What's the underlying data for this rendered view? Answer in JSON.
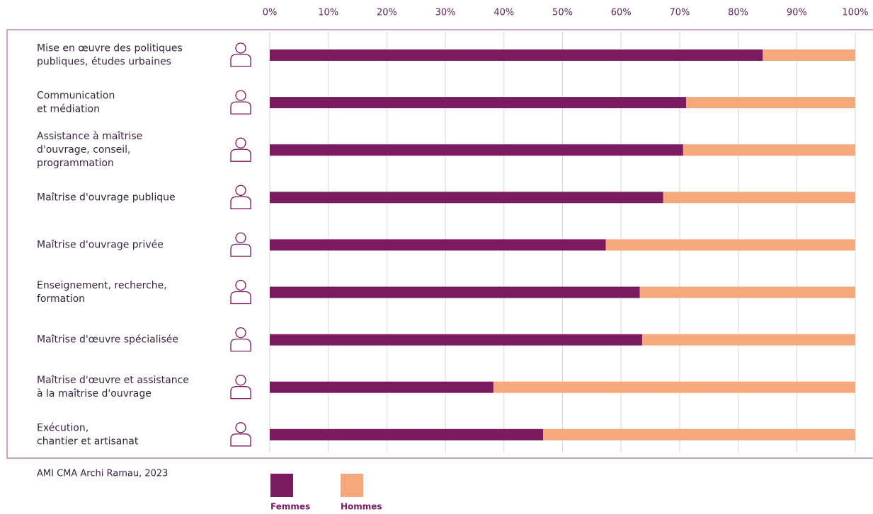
{
  "chart_data": {
    "type": "stacked_barh",
    "categories": [
      "Mise en œuvre des politiques\npubliques, études urbaines",
      "Communication\net médiation",
      "Assistance à maîtrise\nd'ouvrage, conseil,\nprogrammation",
      "Maîtrise d'ouvrage publique",
      "Maîtrise d'ouvrage privée",
      "Enseignement, recherche,\nformation",
      "Maîtrise d'œuvre spécialisée",
      "Maîtrise d'œuvre et assistance\nà la maîtrise d'ouvrage",
      "Exécution,\nchantier et artisanat"
    ],
    "series": [
      {
        "name": "Femmes",
        "color": "#7b1a5e",
        "values": [
          84.2,
          71.1,
          70.6,
          67.2,
          57.4,
          63.2,
          63.6,
          38.2,
          46.7
        ]
      },
      {
        "name": "Hommes",
        "color": "#f5a87c",
        "values": [
          15.8,
          28.9,
          29.4,
          32.8,
          42.6,
          36.8,
          36.4,
          61.8,
          53.3
        ]
      }
    ],
    "xlim": [
      0,
      100
    ],
    "xticks": [
      {
        "value": 0,
        "label": "0%"
      },
      {
        "value": 10,
        "label": "10%"
      },
      {
        "value": 20,
        "label": "20%"
      },
      {
        "value": 30,
        "label": "30%"
      },
      {
        "value": 40,
        "label": "40%"
      },
      {
        "value": 50,
        "label": "50%"
      },
      {
        "value": 60,
        "label": "60%"
      },
      {
        "value": 70,
        "label": "70%"
      },
      {
        "value": 80,
        "label": "80%"
      },
      {
        "value": 90,
        "label": "90%"
      },
      {
        "value": 100,
        "label": "100%"
      }
    ],
    "grid": true,
    "source": "AMI CMA Archi Ramau, 2023"
  }
}
